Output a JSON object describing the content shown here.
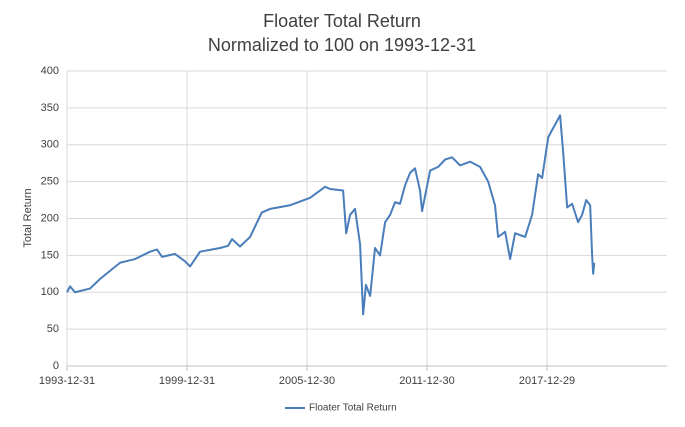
{
  "chart_data": {
    "type": "line",
    "title": "Floater Total Return",
    "subtitle": "Normalized to 100 on 1993-12-31",
    "y_label": "Total Return",
    "x": [
      "1993-12-31",
      "1994-02-25",
      "1994-05-25",
      "1995-02-25",
      "1995-08-25",
      "1996-08-25",
      "1997-05-25",
      "1998-02-25",
      "1998-07-01",
      "1998-10-01",
      "1999-05-25",
      "1999-11-25",
      "2000-02-25",
      "2000-08-25",
      "2001-08-25",
      "2002-01-20",
      "2002-04-01",
      "2002-08-25",
      "2003-02-25",
      "2003-09-25",
      "2004-02-25",
      "2005-02-25",
      "2006-02-25",
      "2006-11-25",
      "2007-02-25",
      "2007-10-20",
      "2007-12-15",
      "2008-02-25",
      "2008-05-25",
      "2008-08-25",
      "2008-10-20",
      "2008-12-10",
      "2009-02-25",
      "2009-05-25",
      "2009-08-25",
      "2009-11-25",
      "2010-02-25",
      "2010-05-25",
      "2010-08-25",
      "2010-11-25",
      "2011-02-25",
      "2011-05-25",
      "2011-08-25",
      "2011-10-01",
      "2012-02-25",
      "2012-07-20",
      "2012-11-25",
      "2013-04-01",
      "2013-08-25",
      "2014-02-25",
      "2014-08-25",
      "2015-01-20",
      "2015-05-25",
      "2015-07-20",
      "2015-11-25",
      "2016-02-25",
      "2016-05-25",
      "2016-11-25",
      "2017-04-01",
      "2017-07-20",
      "2017-10-01",
      "2018-01-20",
      "2018-04-01",
      "2018-06-15",
      "2018-08-25",
      "2018-10-20",
      "2019-01-01",
      "2019-04-01",
      "2019-07-20",
      "2019-10-01",
      "2019-12-15",
      "2020-02-25",
      "2020-04-01",
      "2020-04-20",
      "2020-05-10"
    ],
    "series": [
      {
        "name": "Floater Total Return",
        "color": "#4a7ebb",
        "values": [
          100,
          108,
          100,
          105,
          118,
          140,
          145,
          155,
          158,
          148,
          152,
          142,
          135,
          155,
          160,
          163,
          172,
          162,
          175,
          208,
          213,
          218,
          228,
          243,
          240,
          238,
          180,
          205,
          213,
          165,
          70,
          110,
          95,
          160,
          150,
          195,
          205,
          222,
          220,
          245,
          262,
          268,
          238,
          210,
          265,
          270,
          280,
          283,
          272,
          277,
          270,
          250,
          218,
          175,
          182,
          145,
          180,
          175,
          205,
          260,
          255,
          310,
          320,
          330,
          340,
          290,
          215,
          220,
          195,
          205,
          225,
          218,
          150,
          125,
          140
        ]
      }
    ],
    "xlim": [
      "1993-12-31",
      "2023-12-29"
    ],
    "xticks": [
      "1993-12-31",
      "1999-12-31",
      "2005-12-30",
      "2011-12-30",
      "2017-12-29"
    ],
    "ylim": [
      0,
      400
    ],
    "yticks": [
      0,
      50,
      100,
      150,
      200,
      250,
      300,
      350,
      400
    ],
    "grid": true,
    "legend": "bottom"
  }
}
